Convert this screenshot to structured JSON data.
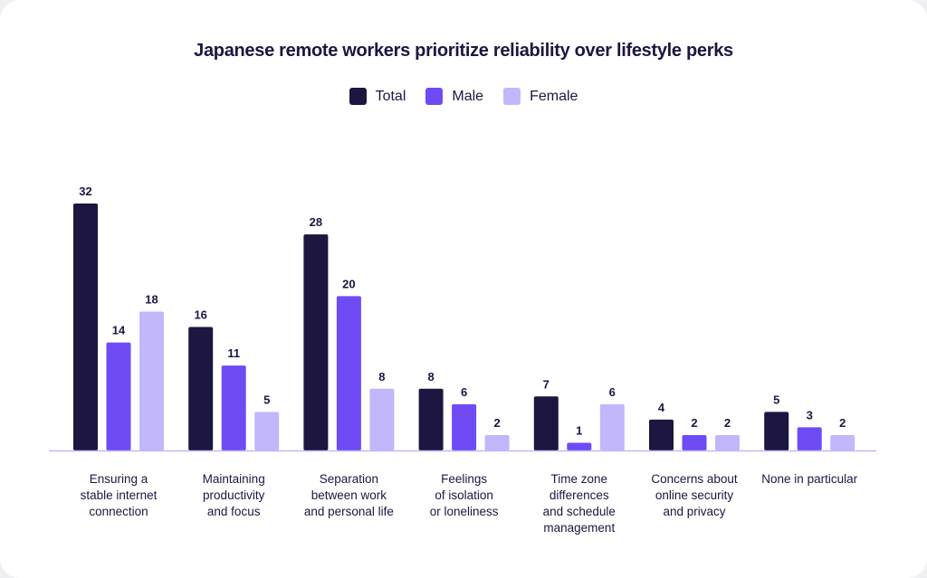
{
  "chart_data": {
    "type": "bar",
    "title": "Japanese remote workers prioritize reliability over  lifestyle perks",
    "legend_position": "top-center",
    "grid": false,
    "ylim": [
      0,
      32
    ],
    "categories": [
      "Ensuring a\nstable internet\nconnection",
      "Maintaining\nproductivity\nand focus",
      "Separation\nbetween work\nand personal life",
      "Feelings\nof isolation\nor loneliness",
      "Time zone\ndifferences\nand schedule\nmanagement",
      "Concerns about\nonline security\nand privacy",
      "None in particular"
    ],
    "series": [
      {
        "name": "Total",
        "color": "#1c1640",
        "values": [
          32,
          16,
          28,
          8,
          7,
          4,
          5
        ]
      },
      {
        "name": "Male",
        "color": "#6e4bf5",
        "values": [
          14,
          11,
          20,
          6,
          1,
          2,
          3
        ]
      },
      {
        "name": "Female",
        "color": "#c3b7fb",
        "values": [
          18,
          5,
          8,
          2,
          6,
          2,
          2
        ]
      }
    ]
  }
}
